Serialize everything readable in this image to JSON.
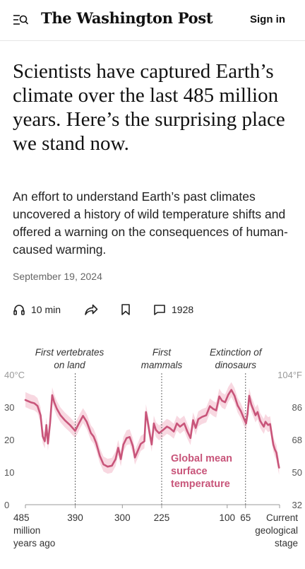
{
  "header": {
    "logo": "The Washington Post",
    "sign_in": "Sign in"
  },
  "article": {
    "headline": "Scientists have captured Earth’s climate over the last 485 million years. Here’s the surprising place we stand now.",
    "dek": "An effort to understand Earth’s past climates uncovered a history of wild temperature shifts and offered a warning on the consequences of human-caused warming.",
    "date": "September 19, 2024"
  },
  "actions": {
    "listen_label": "10 min",
    "comments_count": "1928"
  },
  "icons": {
    "menu": "menu-search-icon",
    "listen": "headphones-icon",
    "share": "share-arrow-icon",
    "save": "bookmark-icon",
    "comments": "comment-bubble-icon"
  },
  "chart_data": {
    "type": "line",
    "series_label": [
      "Global mean",
      "surface",
      "temperature"
    ],
    "line_color": "#c8557a",
    "band_color": "#f7d4de",
    "x_axis": {
      "range": [
        485,
        0
      ],
      "ticks": [
        {
          "value": 485,
          "lines": [
            "485",
            "million",
            "years ago"
          ]
        },
        {
          "value": 390,
          "lines": [
            "390"
          ]
        },
        {
          "value": 300,
          "lines": [
            "300"
          ]
        },
        {
          "value": 225,
          "lines": [
            "225"
          ]
        },
        {
          "value": 100,
          "lines": [
            "100"
          ]
        },
        {
          "value": 65,
          "lines": [
            "65"
          ]
        },
        {
          "value": 0,
          "lines": [
            "Current",
            "geological",
            "stage"
          ]
        }
      ]
    },
    "y_axis_left": {
      "range": [
        0,
        40
      ],
      "ticks": [
        {
          "value": 0,
          "label": "0"
        },
        {
          "value": 10,
          "label": "10"
        },
        {
          "value": 20,
          "label": "20"
        },
        {
          "value": 30,
          "label": "30"
        },
        {
          "value": 40,
          "label": "40°C"
        }
      ]
    },
    "y_axis_right": {
      "ticks": [
        {
          "value": 0,
          "label": "32"
        },
        {
          "value": 10,
          "label": "50"
        },
        {
          "value": 20,
          "label": "68"
        },
        {
          "value": 30,
          "label": "86"
        },
        {
          "value": 40,
          "label": "104°F"
        }
      ]
    },
    "events": [
      {
        "x": 390,
        "lines": [
          "First vertebrates",
          "on land"
        ],
        "offset": -8
      },
      {
        "x": 225,
        "lines": [
          "First",
          "mammals"
        ],
        "offset": 0
      },
      {
        "x": 65,
        "lines": [
          "Extinction of",
          "dinosaurs"
        ],
        "offset": -14
      }
    ],
    "points": [
      [
        485,
        32.2
      ],
      [
        475,
        31.5
      ],
      [
        468,
        31.2
      ],
      [
        462,
        30.4
      ],
      [
        456,
        27.5
      ],
      [
        452,
        21.0
      ],
      [
        448,
        19.5
      ],
      [
        445,
        24.5
      ],
      [
        442,
        18.8
      ],
      [
        438,
        25.0
      ],
      [
        434,
        33.7
      ],
      [
        430,
        31.5
      ],
      [
        425,
        29.5
      ],
      [
        418,
        27.5
      ],
      [
        410,
        26.0
      ],
      [
        400,
        24.5
      ],
      [
        390,
        22.7
      ],
      [
        382,
        25.3
      ],
      [
        375,
        27.3
      ],
      [
        368,
        25.5
      ],
      [
        360,
        22.0
      ],
      [
        355,
        21.0
      ],
      [
        350,
        19.0
      ],
      [
        343,
        15.0
      ],
      [
        336,
        12.4
      ],
      [
        328,
        11.7
      ],
      [
        320,
        12.0
      ],
      [
        313,
        14.0
      ],
      [
        308,
        17.5
      ],
      [
        303,
        14.0
      ],
      [
        298,
        18.5
      ],
      [
        292,
        20.5
      ],
      [
        286,
        20.8
      ],
      [
        280,
        18.0
      ],
      [
        276,
        14.5
      ],
      [
        270,
        16.8
      ],
      [
        265,
        18.7
      ],
      [
        258,
        19.5
      ],
      [
        255,
        28.5
      ],
      [
        252,
        26.0
      ],
      [
        248,
        22.0
      ],
      [
        244,
        18.5
      ],
      [
        240,
        25.0
      ],
      [
        236,
        23.0
      ],
      [
        230,
        22.0
      ],
      [
        222,
        23.0
      ],
      [
        215,
        24.0
      ],
      [
        210,
        23.6
      ],
      [
        202,
        22.5
      ],
      [
        196,
        25.0
      ],
      [
        190,
        24.0
      ],
      [
        182,
        25.0
      ],
      [
        176,
        22.5
      ],
      [
        170,
        20.5
      ],
      [
        165,
        26.0
      ],
      [
        160,
        23.6
      ],
      [
        155,
        26.3
      ],
      [
        148,
        27.0
      ],
      [
        140,
        27.5
      ],
      [
        133,
        30.3
      ],
      [
        127,
        29.5
      ],
      [
        121,
        29.0
      ],
      [
        115,
        33.3
      ],
      [
        110,
        32.0
      ],
      [
        104,
        31.5
      ],
      [
        98,
        33.8
      ],
      [
        92,
        35.3
      ],
      [
        86,
        33.5
      ],
      [
        80,
        30.5
      ],
      [
        74,
        28.8
      ],
      [
        68,
        26.5
      ],
      [
        64,
        25.0
      ],
      [
        61,
        28.0
      ],
      [
        58,
        33.5
      ],
      [
        54,
        30.8
      ],
      [
        50,
        29.2
      ],
      [
        46,
        27.5
      ],
      [
        42,
        28.5
      ],
      [
        37,
        25.8
      ],
      [
        33,
        24.7
      ],
      [
        30,
        24.0
      ],
      [
        27,
        25.5
      ],
      [
        22,
        24.5
      ],
      [
        18,
        24.8
      ],
      [
        15,
        21.5
      ],
      [
        12,
        18.5
      ],
      [
        9,
        17.0
      ],
      [
        6,
        16.0
      ],
      [
        3,
        13.0
      ],
      [
        1,
        11.4
      ]
    ]
  }
}
